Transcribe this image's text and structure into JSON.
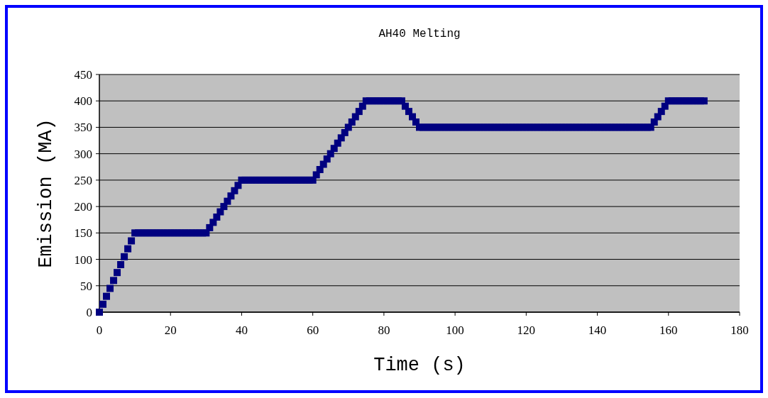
{
  "chart_data": {
    "type": "scatter",
    "title": "AH40 Melting",
    "xlabel": "Time (s)",
    "ylabel": "Emission (MA)",
    "marker": "square",
    "grid": "y",
    "xlim": [
      0,
      180
    ],
    "xticks": [
      0,
      20,
      40,
      60,
      80,
      100,
      120,
      140,
      160,
      180
    ],
    "ylim": [
      0,
      450
    ],
    "yticks": [
      0,
      50,
      100,
      150,
      200,
      250,
      300,
      350,
      400,
      450
    ],
    "series": [
      {
        "color": "#000080",
        "x": [
          0,
          1,
          2,
          3,
          4,
          5,
          6,
          7,
          8,
          9,
          10,
          11,
          12,
          13,
          14,
          15,
          16,
          17,
          18,
          19,
          20,
          21,
          22,
          23,
          24,
          25,
          26,
          27,
          28,
          29,
          30,
          31,
          32,
          33,
          34,
          35,
          36,
          37,
          38,
          39,
          40,
          41,
          42,
          43,
          44,
          45,
          46,
          47,
          48,
          49,
          50,
          51,
          52,
          53,
          54,
          55,
          56,
          57,
          58,
          59,
          60,
          61,
          62,
          63,
          64,
          65,
          66,
          67,
          68,
          69,
          70,
          71,
          72,
          73,
          74,
          75,
          76,
          77,
          78,
          79,
          80,
          81,
          82,
          83,
          84,
          85,
          86,
          87,
          88,
          89,
          90,
          91,
          92,
          93,
          94,
          95,
          96,
          97,
          98,
          99,
          100,
          101,
          102,
          103,
          104,
          105,
          106,
          107,
          108,
          109,
          110,
          111,
          112,
          113,
          114,
          115,
          116,
          117,
          118,
          119,
          120,
          121,
          122,
          123,
          124,
          125,
          126,
          127,
          128,
          129,
          130,
          131,
          132,
          133,
          134,
          135,
          136,
          137,
          138,
          139,
          140,
          141,
          142,
          143,
          144,
          145,
          146,
          147,
          148,
          149,
          150,
          151,
          152,
          153,
          154,
          155,
          156,
          157,
          158,
          159,
          160,
          161,
          162,
          163,
          164,
          165,
          166,
          167,
          168,
          169,
          170
        ],
        "values": [
          0,
          15,
          30,
          45,
          60,
          75,
          90,
          105,
          120,
          135,
          150,
          150,
          150,
          150,
          150,
          150,
          150,
          150,
          150,
          150,
          150,
          150,
          150,
          150,
          150,
          150,
          150,
          150,
          150,
          150,
          150,
          160,
          170,
          180,
          190,
          200,
          210,
          220,
          230,
          240,
          250,
          250,
          250,
          250,
          250,
          250,
          250,
          250,
          250,
          250,
          250,
          250,
          250,
          250,
          250,
          250,
          250,
          250,
          250,
          250,
          250,
          260,
          270,
          280,
          290,
          300,
          310,
          320,
          330,
          340,
          350,
          360,
          370,
          380,
          390,
          400,
          400,
          400,
          400,
          400,
          400,
          400,
          400,
          400,
          400,
          400,
          390,
          380,
          370,
          360,
          350,
          350,
          350,
          350,
          350,
          350,
          350,
          350,
          350,
          350,
          350,
          350,
          350,
          350,
          350,
          350,
          350,
          350,
          350,
          350,
          350,
          350,
          350,
          350,
          350,
          350,
          350,
          350,
          350,
          350,
          350,
          350,
          350,
          350,
          350,
          350,
          350,
          350,
          350,
          350,
          350,
          350,
          350,
          350,
          350,
          350,
          350,
          350,
          350,
          350,
          350,
          350,
          350,
          350,
          350,
          350,
          350,
          350,
          350,
          350,
          350,
          350,
          350,
          350,
          350,
          350,
          360,
          370,
          380,
          390,
          400,
          400,
          400,
          400,
          400,
          400,
          400,
          400,
          400,
          400,
          400
        ]
      }
    ]
  }
}
